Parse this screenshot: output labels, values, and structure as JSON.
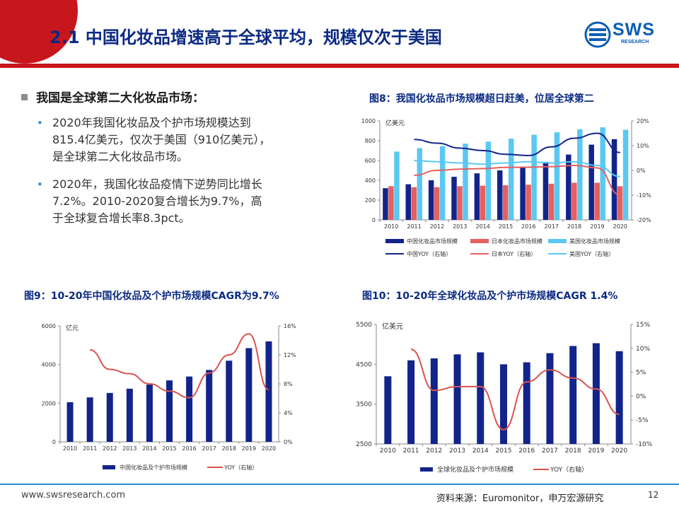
{
  "header": {
    "title": "2.1 中国化妆品增速高于全球平均，规模仅次于美国",
    "logo_text": "SWS",
    "logo_sub": "RESEARCH"
  },
  "body": {
    "lead": "我国是全球第二大化妆品市场：",
    "bullets": [
      {
        "lines": [
          "2020年我国化妆品及个护市场规模达到",
          "815.4亿美元，仅次于美国（910亿美元），",
          "是全球第二大化妆品市场。"
        ]
      },
      {
        "lines": [
          "2020年，我国化妆品疫情下逆势同比增长",
          "7.2%。2010-2020复合增长为9.7%，高",
          "于全球复合增长率8.3pct。"
        ]
      }
    ]
  },
  "figures": {
    "fig8_title": "图8：我国化妆品市场规模超日赶美，位居全球第二",
    "fig9_title": "图9：10-20年中国化妆品及个护市场规模CAGR为9.7%",
    "fig10_title": "图10：10-20年全球化妆品及个护市场规模CAGR 1.4%"
  },
  "colors": {
    "brand_red": "#c8161d",
    "title_blue": "#0b2a83",
    "navy_bar": "#12248a",
    "coral": "#e5605f",
    "cyan": "#5bc8f2",
    "red_line": "#d9534f"
  },
  "chart_data": [
    {
      "id": "fig8",
      "type": "bar",
      "categories": [
        "2010",
        "2011",
        "2012",
        "2013",
        "2014",
        "2015",
        "2016",
        "2017",
        "2018",
        "2019",
        "2020"
      ],
      "left_axis": {
        "unit": "亿美元",
        "ylim": [
          0,
          1000
        ],
        "ticks": [
          "0",
          "200",
          "400",
          "600",
          "800",
          "1000"
        ]
      },
      "right_axis": {
        "ylim": [
          -20,
          20
        ],
        "ticks": [
          "-20%",
          "-10%",
          "0%",
          "10%",
          "20%"
        ]
      },
      "series": [
        {
          "name": "中国化妆品市场规模",
          "kind": "bar",
          "axis": "left",
          "color": "#12248a",
          "values": [
            320,
            360,
            400,
            435,
            470,
            500,
            535,
            585,
            660,
            760,
            815
          ]
        },
        {
          "name": "日本化妆品市场规模",
          "kind": "bar",
          "axis": "left",
          "color": "#e5605f",
          "values": [
            340,
            330,
            330,
            340,
            345,
            350,
            355,
            365,
            375,
            375,
            340
          ]
        },
        {
          "name": "美国化妆品市场规模",
          "kind": "bar",
          "axis": "left",
          "color": "#5bc8f2",
          "values": [
            690,
            725,
            745,
            770,
            790,
            820,
            860,
            885,
            915,
            935,
            910
          ]
        },
        {
          "name": "中国YOY（右轴）",
          "kind": "line",
          "axis": "right",
          "color": "#12248a",
          "values": [
            null,
            12.5,
            11,
            9,
            8,
            6.5,
            6,
            9.5,
            13,
            15,
            7.2
          ]
        },
        {
          "name": "日本YOY（右轴）",
          "kind": "line",
          "axis": "right",
          "color": "#e5605f",
          "values": [
            null,
            -2,
            0,
            0.5,
            0.7,
            1.2,
            1.3,
            1.5,
            2,
            1,
            -10
          ]
        },
        {
          "name": "美国YOY（右轴）",
          "kind": "line",
          "axis": "right",
          "color": "#5bc8f2",
          "values": [
            null,
            4,
            3.5,
            3,
            2.5,
            3,
            3.5,
            3,
            3.5,
            2,
            -2.5
          ]
        }
      ]
    },
    {
      "id": "fig9",
      "type": "bar",
      "categories": [
        "2010",
        "2011",
        "2012",
        "2013",
        "2014",
        "2015",
        "2016",
        "2017",
        "2018",
        "2019",
        "2020"
      ],
      "left_axis": {
        "unit": "亿元",
        "ylim": [
          0,
          6000
        ],
        "ticks": [
          "0",
          "2000",
          "4000",
          "6000"
        ]
      },
      "right_axis": {
        "ylim": [
          0,
          16
        ],
        "ticks": [
          "0%",
          "4%",
          "8%",
          "12%",
          "16%"
        ]
      },
      "series": [
        {
          "name": "中国化妆品及个护市场规模",
          "kind": "bar",
          "axis": "left",
          "color": "#12248a",
          "values": [
            2050,
            2300,
            2530,
            2750,
            2960,
            3180,
            3380,
            3720,
            4200,
            4850,
            5200
          ]
        },
        {
          "name": "YOY（右轴）",
          "kind": "line",
          "axis": "right",
          "color": "#d9534f",
          "values": [
            null,
            12.7,
            10,
            9.4,
            8,
            7,
            6.1,
            9.5,
            12,
            14.9,
            7.2
          ]
        }
      ]
    },
    {
      "id": "fig10",
      "type": "bar",
      "categories": [
        "2010",
        "2011",
        "2012",
        "2013",
        "2014",
        "2015",
        "2016",
        "2017",
        "2018",
        "2019",
        "2020"
      ],
      "left_axis": {
        "unit": "亿美元",
        "ylim": [
          2500,
          5500
        ],
        "ticks": [
          "2500",
          "3500",
          "4500",
          "5500"
        ]
      },
      "right_axis": {
        "ylim": [
          -10,
          15
        ],
        "ticks": [
          "-10%",
          "-5%",
          "0%",
          "5%",
          "10%",
          "15%"
        ]
      },
      "series": [
        {
          "name": "全球化妆品及个护市场规模",
          "kind": "bar",
          "axis": "left",
          "color": "#12248a",
          "values": [
            4200,
            4600,
            4650,
            4750,
            4800,
            4500,
            4550,
            4780,
            4960,
            5030,
            4830
          ]
        },
        {
          "name": "YOY（右轴）",
          "kind": "line",
          "axis": "right",
          "color": "#d9534f",
          "values": [
            null,
            9.8,
            1.2,
            2,
            2,
            -7,
            3,
            5.5,
            3.8,
            1.5,
            -3.8
          ]
        }
      ]
    }
  ],
  "footer": {
    "url": "www.swsresearch.com",
    "source": "资料来源：Euromonitor，申万宏源研究",
    "page": "12"
  }
}
